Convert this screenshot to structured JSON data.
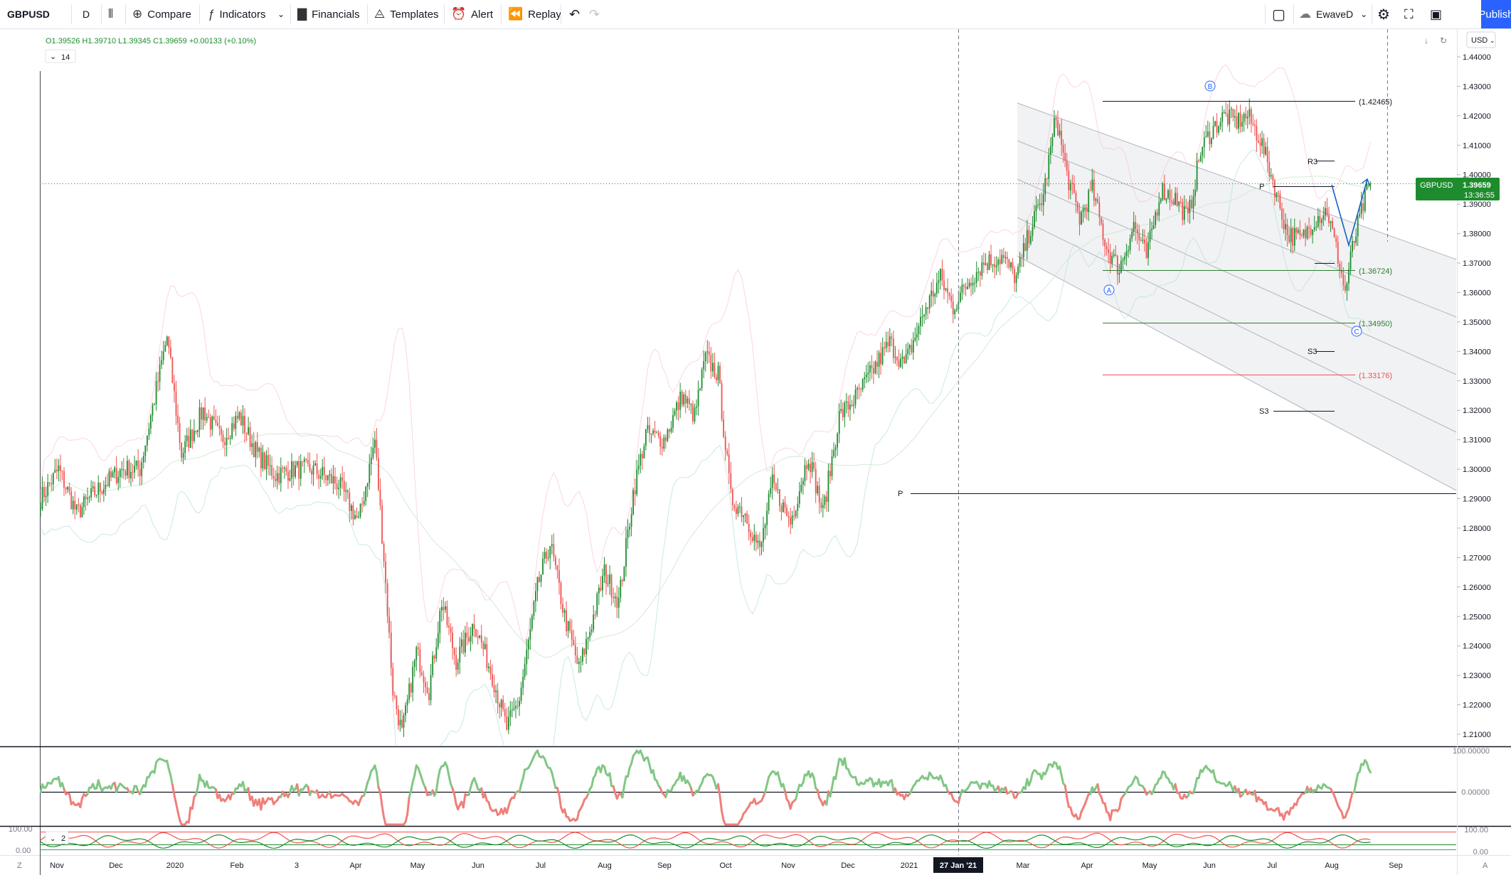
{
  "toolbar": {
    "symbol": "GBPUSD",
    "interval": "D",
    "compare": "Compare",
    "indicators": "Indicators",
    "financials": "Financials",
    "templates": "Templates",
    "alert": "Alert",
    "replay": "Replay",
    "layout_name": "EwaveD",
    "publish": "Publish"
  },
  "legend": {
    "ohlc": "O1.39526 H1.39710 L1.39345 C1.39659 +0.00133 (+0.10%)",
    "indicator_length": "14",
    "osc2_length": "2"
  },
  "price_scale": {
    "currency": "USD",
    "ticks": [
      "1.44000",
      "1.43000",
      "1.42000",
      "1.41000",
      "1.40000",
      "1.39000",
      "1.38000",
      "1.37000",
      "1.36000",
      "1.35000",
      "1.34000",
      "1.33000",
      "1.32000",
      "1.31000",
      "1.30000",
      "1.29000",
      "1.28000",
      "1.27000",
      "1.26000",
      "1.25000",
      "1.24000",
      "1.23000",
      "1.22000",
      "1.21000"
    ],
    "last_symbol": "GBPUSD",
    "last_price": "1.39659",
    "countdown": "13:36:55",
    "osc1_ticks": [
      "100.00000",
      "0.00000"
    ],
    "osc2_ticks": [
      "100.00",
      "0.00"
    ],
    "osc2_left_ticks": [
      "100.00",
      "0.00"
    ]
  },
  "time_axis": {
    "labels": [
      "Nov",
      "Dec",
      "2020",
      "Feb",
      "3",
      "Apr",
      "May",
      "Jun",
      "Jul",
      "Aug",
      "Sep",
      "Oct",
      "Nov",
      "Dec",
      "2021",
      "Mar",
      "Apr",
      "May",
      "Jun",
      "Jul",
      "Aug",
      "Sep"
    ],
    "cursor_label": "27 Jan '21"
  },
  "annotations": {
    "fib_1": "(1.42465)",
    "fib_2": "(1.36724)",
    "fib_3": "(1.34950)",
    "fib_4": "(1.33176)",
    "wave_a": "A",
    "wave_b": "B",
    "wave_c": "C",
    "r3": "R3",
    "s3_a": "S3",
    "s3_b": "S3",
    "pivot_p": "P",
    "pivot_p2": "P"
  },
  "chart_data": {
    "type": "candlestick",
    "symbol": "GBPUSD",
    "interval": "D",
    "ylim": [
      1.205,
      1.445
    ],
    "last_close": 1.39659,
    "horizontal_levels": [
      1.42465,
      1.36724,
      1.3495,
      1.33176,
      1.291
    ],
    "colors": {
      "up": "#26a69a",
      "up_body": "#1e8c2e",
      "down": "#ef5350",
      "fib_green": "#2e7d32",
      "fib_red": "#ef5350",
      "price_line": "#1e8c2e",
      "publish": "#2962ff"
    },
    "waypoints": [
      [
        0,
        1.29
      ],
      [
        10,
        1.3
      ],
      [
        20,
        1.285
      ],
      [
        30,
        1.292
      ],
      [
        45,
        1.3
      ],
      [
        55,
        1.3
      ],
      [
        65,
        1.33
      ],
      [
        70,
        1.345
      ],
      [
        78,
        1.305
      ],
      [
        90,
        1.32
      ],
      [
        100,
        1.31
      ],
      [
        110,
        1.318
      ],
      [
        120,
        1.305
      ],
      [
        130,
        1.298
      ],
      [
        140,
        1.3
      ],
      [
        150,
        1.3
      ],
      [
        165,
        1.295
      ],
      [
        176,
        1.282
      ],
      [
        185,
        1.31
      ],
      [
        190,
        1.27
      ],
      [
        195,
        1.225
      ],
      [
        200,
        1.21
      ],
      [
        208,
        1.238
      ],
      [
        215,
        1.225
      ],
      [
        222,
        1.255
      ],
      [
        230,
        1.235
      ],
      [
        240,
        1.248
      ],
      [
        250,
        1.23
      ],
      [
        258,
        1.212
      ],
      [
        265,
        1.222
      ],
      [
        275,
        1.26
      ],
      [
        282,
        1.275
      ],
      [
        290,
        1.25
      ],
      [
        298,
        1.232
      ],
      [
        306,
        1.25
      ],
      [
        312,
        1.265
      ],
      [
        320,
        1.255
      ],
      [
        328,
        1.292
      ],
      [
        335,
        1.312
      ],
      [
        345,
        1.31
      ],
      [
        355,
        1.325
      ],
      [
        362,
        1.318
      ],
      [
        368,
        1.338
      ],
      [
        375,
        1.332
      ],
      [
        382,
        1.29
      ],
      [
        390,
        1.285
      ],
      [
        398,
        1.272
      ],
      [
        405,
        1.295
      ],
      [
        415,
        1.282
      ],
      [
        425,
        1.305
      ],
      [
        433,
        1.285
      ],
      [
        442,
        1.318
      ],
      [
        452,
        1.325
      ],
      [
        462,
        1.335
      ],
      [
        470,
        1.343
      ],
      [
        478,
        1.335
      ],
      [
        490,
        1.355
      ],
      [
        498,
        1.365
      ],
      [
        505,
        1.355
      ],
      [
        515,
        1.365
      ],
      [
        522,
        1.37
      ],
      [
        532,
        1.372
      ],
      [
        540,
        1.365
      ],
      [
        548,
        1.382
      ],
      [
        555,
        1.393
      ],
      [
        562,
        1.42
      ],
      [
        568,
        1.4
      ],
      [
        575,
        1.385
      ],
      [
        582,
        1.395
      ],
      [
        590,
        1.375
      ],
      [
        597,
        1.368
      ],
      [
        605,
        1.383
      ],
      [
        612,
        1.372
      ],
      [
        620,
        1.395
      ],
      [
        628,
        1.392
      ],
      [
        635,
        1.385
      ],
      [
        642,
        1.408
      ],
      [
        648,
        1.415
      ],
      [
        655,
        1.42
      ],
      [
        662,
        1.418
      ],
      [
        668,
        1.42
      ],
      [
        675,
        1.412
      ],
      [
        682,
        1.398
      ],
      [
        690,
        1.38
      ],
      [
        698,
        1.378
      ],
      [
        705,
        1.385
      ],
      [
        712,
        1.388
      ],
      [
        718,
        1.372
      ],
      [
        722,
        1.36
      ],
      [
        726,
        1.375
      ],
      [
        730,
        1.385
      ],
      [
        734,
        1.394
      ],
      [
        736,
        1.397
      ]
    ]
  }
}
